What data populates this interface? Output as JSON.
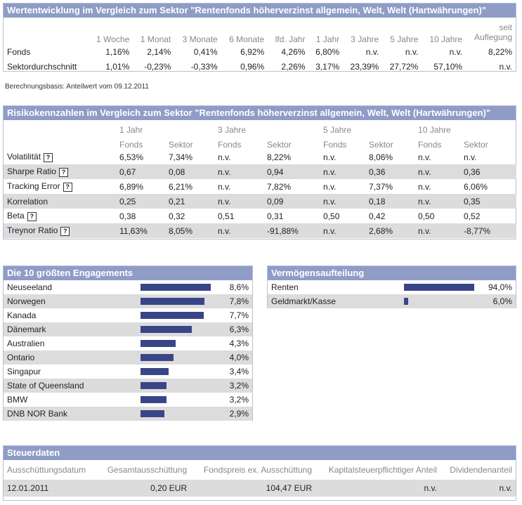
{
  "perf": {
    "title": "Wertentwicklung im Vergleich zum Sektor \"Rentenfonds höherverzinst allgemein, Welt, Welt (Hartwährungen)\"",
    "headers": [
      "1 Woche",
      "1 Monat",
      "3 Monate",
      "6 Monate",
      "lfd. Jahr",
      "1 Jahr",
      "3 Jahre",
      "5 Jahre",
      "10 Jahre"
    ],
    "header_last_line1": "seit",
    "header_last_line2": "Auflegung",
    "rows": [
      {
        "label": "Fonds",
        "values": [
          "1,16%",
          "2,14%",
          "0,41%",
          "6,92%",
          "4,26%",
          "6,80%",
          "n.v.",
          "n.v.",
          "n.v.",
          "8,22%"
        ]
      },
      {
        "label": "Sektordurchschnitt",
        "values": [
          "1,01%",
          "-0,23%",
          "-0,33%",
          "0,96%",
          "2,26%",
          "3,17%",
          "23,39%",
          "27,72%",
          "57,10%",
          "n.v."
        ]
      }
    ],
    "note": "Berechnungsbasis: Anteilwert vom 09.12.2011"
  },
  "risk": {
    "title": "Risikokennzahlen im Vergleich zum Sektor \"Rentenfonds höherverzinst allgemein, Welt, Welt (Hartwährungen)\"",
    "periods": [
      "1 Jahr",
      "3 Jahre",
      "5 Jahre",
      "10 Jahre"
    ],
    "sub": [
      "Fonds",
      "Sektor",
      "Fonds",
      "Sektor",
      "Fonds",
      "Sektor",
      "Fonds",
      "Sektor"
    ],
    "help": "?",
    "rows": [
      {
        "label": "Volatilität",
        "help": true,
        "values": [
          "6,53%",
          "7,34%",
          "n.v.",
          "8,22%",
          "n.v.",
          "8,06%",
          "n.v.",
          "n.v."
        ]
      },
      {
        "label": "Sharpe Ratio",
        "help": true,
        "values": [
          "0,67",
          "0,08",
          "n.v.",
          "0,94",
          "n.v.",
          "0,36",
          "n.v.",
          "0,36"
        ]
      },
      {
        "label": "Tracking Error",
        "help": true,
        "values": [
          "6,89%",
          "6,21%",
          "n.v.",
          "7,82%",
          "n.v.",
          "7,37%",
          "n.v.",
          "6,06%"
        ]
      },
      {
        "label": "Korrelation",
        "help": false,
        "values": [
          "0,25",
          "0,21",
          "n.v.",
          "0,09",
          "n.v.",
          "0,18",
          "n.v.",
          "0,35"
        ]
      },
      {
        "label": "Beta",
        "help": true,
        "values": [
          "0,38",
          "0,32",
          "0,51",
          "0,31",
          "0,50",
          "0,42",
          "0,50",
          "0,52"
        ]
      },
      {
        "label": "Treynor Ratio",
        "help": true,
        "values": [
          "11,63%",
          "8,05%",
          "n.v.",
          "-91,88%",
          "n.v.",
          "2,68%",
          "n.v.",
          "-8,77%"
        ]
      }
    ]
  },
  "top10": {
    "title": "Die 10 größten Engagements",
    "items": [
      {
        "label": "Neuseeland",
        "value": 8.6,
        "text": "8,6%"
      },
      {
        "label": "Norwegen",
        "value": 7.8,
        "text": "7,8%"
      },
      {
        "label": "Kanada",
        "value": 7.7,
        "text": "7,7%"
      },
      {
        "label": "Dänemark",
        "value": 6.3,
        "text": "6,3%"
      },
      {
        "label": "Australien",
        "value": 4.3,
        "text": "4,3%"
      },
      {
        "label": "Ontario",
        "value": 4.0,
        "text": "4,0%"
      },
      {
        "label": "Singapur",
        "value": 3.4,
        "text": "3,4%"
      },
      {
        "label": "State of Queensland",
        "value": 3.2,
        "text": "3,2%"
      },
      {
        "label": "BMW",
        "value": 3.2,
        "text": "3,2%"
      },
      {
        "label": "DNB NOR Bank",
        "value": 2.9,
        "text": "2,9%"
      }
    ]
  },
  "alloc": {
    "title": "Vermögensaufteilung",
    "items": [
      {
        "label": "Renten",
        "value": 94.0,
        "text": "94,0%"
      },
      {
        "label": "Geldmarkt/Kasse",
        "value": 6.0,
        "text": "6,0%"
      }
    ]
  },
  "tax": {
    "title": "Steuerdaten",
    "headers": [
      "Ausschüttungsdatum",
      "Gesamtausschüttung",
      "Fondspreis ex. Ausschüttung",
      "Kapitalsteuerpflichtiger Anteil",
      "Dividendenanteil"
    ],
    "values": [
      "12.01.2011",
      "0,20 EUR",
      "104,47 EUR",
      "n.v.",
      "n.v."
    ]
  },
  "colors": {
    "header": "#8e9cc6",
    "bar": "#3a4588",
    "stripe": "#dcdcdc"
  }
}
